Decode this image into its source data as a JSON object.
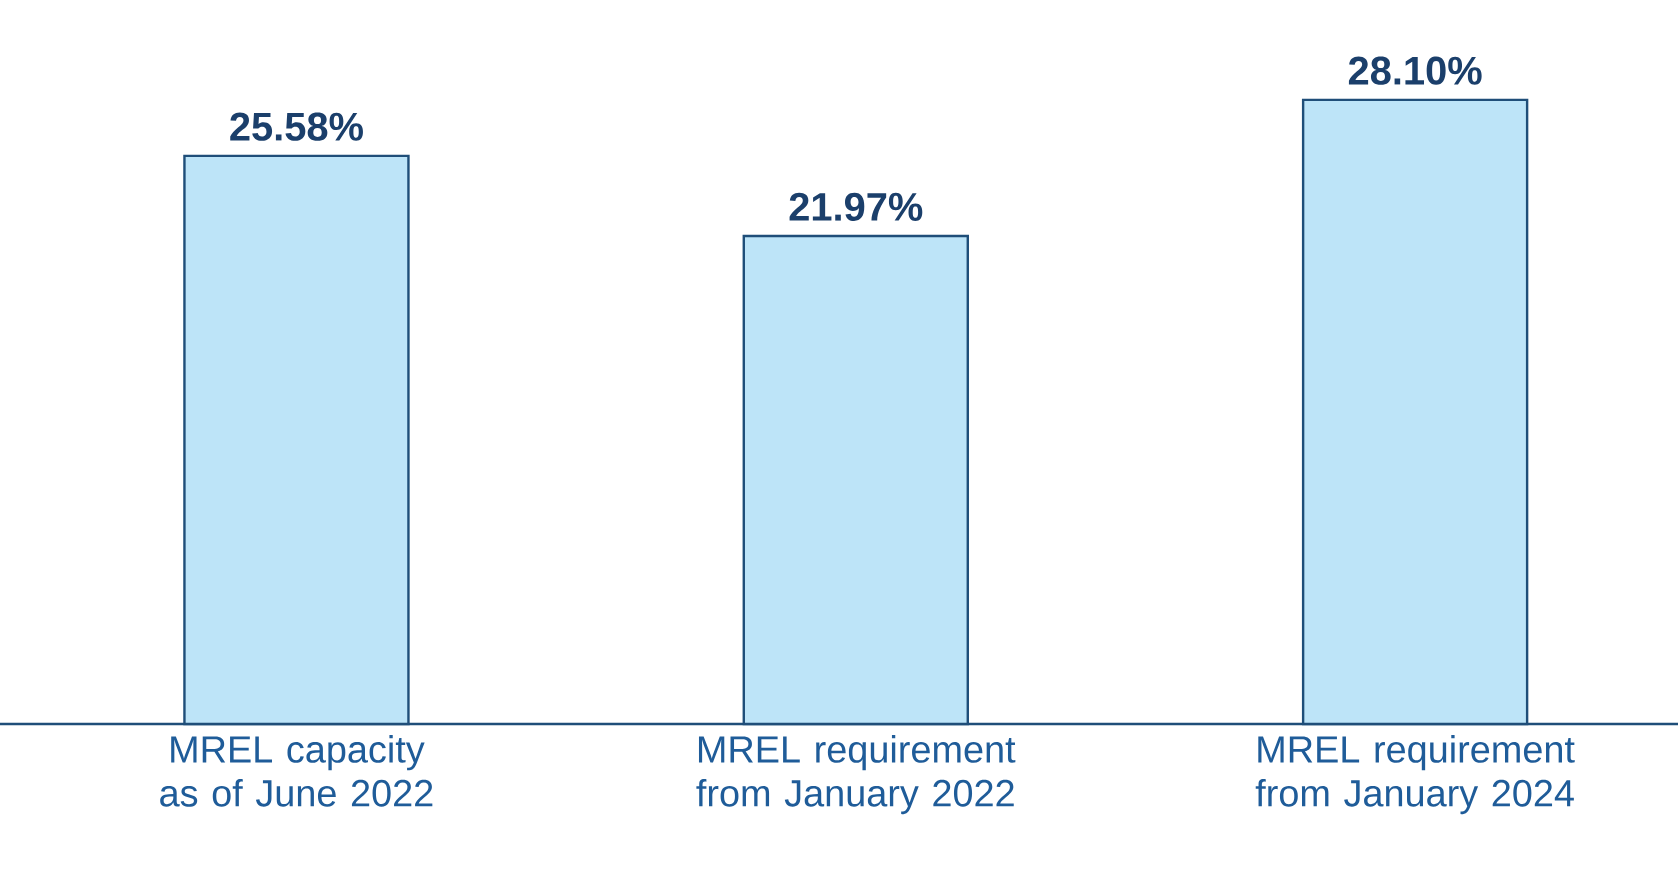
{
  "chart_data": {
    "type": "bar",
    "categories": [
      "MREL capacity as of June 2022",
      "MREL requirement from January 2022",
      "MREL requirement from January 2024"
    ],
    "values": [
      25.58,
      21.97,
      28.1
    ],
    "value_labels": [
      "25.58%",
      "21.97%",
      "28.10%"
    ],
    "color": "#bde4f8"
  }
}
